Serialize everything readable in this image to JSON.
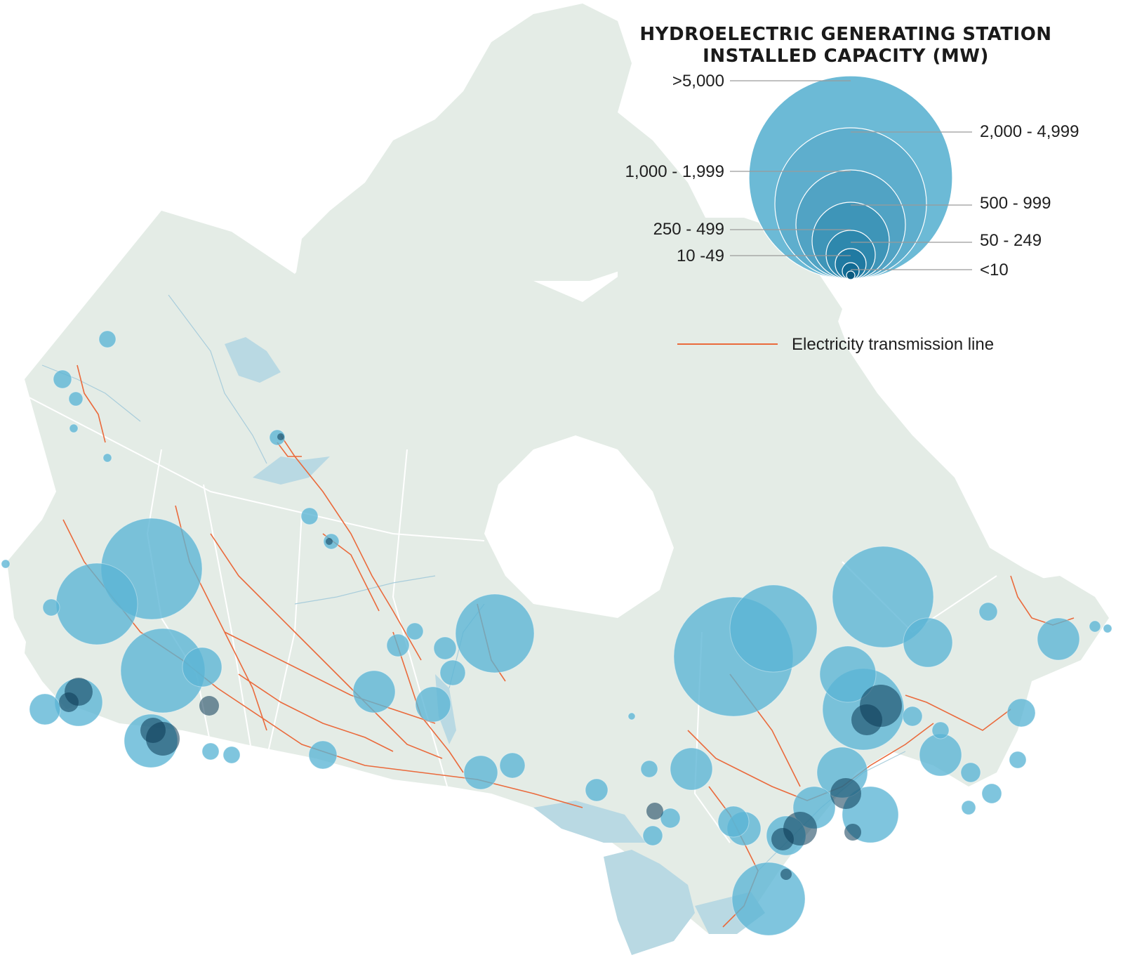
{
  "legend": {
    "title_line1": "HYDROELECTRIC GENERATING STATION",
    "title_line2": "INSTALLED CAPACITY (MW)",
    "classes": [
      {
        "label": ">5,000",
        "side": "left"
      },
      {
        "label": "2,000 - 4,999",
        "side": "right"
      },
      {
        "label": "1,000 - 1,999",
        "side": "left"
      },
      {
        "label": "500 - 999",
        "side": "right"
      },
      {
        "label": "250 - 499",
        "side": "left"
      },
      {
        "label": "50 - 249",
        "side": "right"
      },
      {
        "label": "10 -49",
        "side": "left"
      },
      {
        "label": "<10",
        "side": "right"
      }
    ],
    "transmission_label": "Electricity transmission line"
  },
  "colors": {
    "land": "#e4ece6",
    "water": "#b9d9e3",
    "border": "#ffffff",
    "station_light": "#5bb5d5",
    "station_dark": "#0b3a55",
    "transmission": "#ea6a3c",
    "legend_fill": "#6cbad6"
  }
}
